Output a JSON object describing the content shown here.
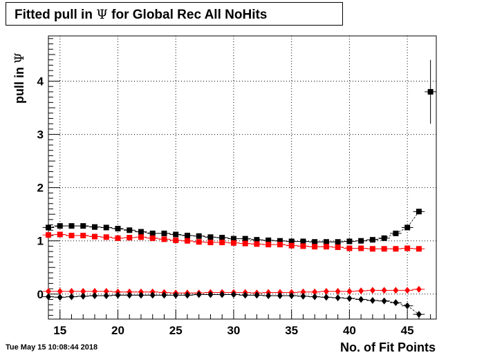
{
  "timestamp": "Tue May 15 10:08:44 2018",
  "colors": {
    "black_series": "#000000",
    "red_series": "#ff0000",
    "grid": "#000000"
  },
  "chart_data": {
    "type": "scatter",
    "title_prefix": "Fitted pull in ",
    "title_symbol": "Ψ",
    "title_suffix": " for Global Rec All NoHits",
    "xlabel": "No. of Fit Points",
    "ylabel_prefix": "pull in ",
    "ylabel_symbol": "Ψ",
    "xlim": [
      14,
      47.5
    ],
    "ylim": [
      -0.47,
      4.85
    ],
    "xticks": [
      15,
      20,
      25,
      30,
      35,
      40,
      45
    ],
    "yticks": [
      0,
      1,
      2,
      3,
      4
    ],
    "grid": true,
    "x": [
      14,
      15,
      16,
      17,
      18,
      19,
      20,
      21,
      22,
      23,
      24,
      25,
      26,
      27,
      28,
      29,
      30,
      31,
      32,
      33,
      34,
      35,
      36,
      37,
      38,
      39,
      40,
      41,
      42,
      43,
      44,
      45,
      46
    ],
    "series": [
      {
        "color": "#000000",
        "marker": "square",
        "values": [
          1.25,
          1.28,
          1.28,
          1.28,
          1.26,
          1.25,
          1.23,
          1.2,
          1.17,
          1.14,
          1.14,
          1.12,
          1.1,
          1.09,
          1.07,
          1.06,
          1.04,
          1.04,
          1.02,
          1.01,
          1.0,
          0.99,
          0.99,
          0.98,
          0.98,
          0.98,
          0.99,
          1.0,
          1.02,
          1.05,
          1.14,
          1.25,
          1.55
        ]
      },
      {
        "color": "#ff0000",
        "marker": "square",
        "values": [
          1.11,
          1.12,
          1.1,
          1.1,
          1.08,
          1.07,
          1.05,
          1.06,
          1.07,
          1.05,
          1.03,
          1.01,
          1.0,
          0.98,
          0.97,
          0.97,
          0.96,
          0.95,
          0.94,
          0.93,
          0.93,
          0.91,
          0.9,
          0.89,
          0.89,
          0.88,
          0.86,
          0.86,
          0.85,
          0.85,
          0.85,
          0.86,
          0.85
        ]
      },
      {
        "color": "#ff0000",
        "marker": "diamond",
        "values": [
          0.05,
          0.05,
          0.05,
          0.05,
          0.05,
          0.05,
          0.04,
          0.04,
          0.04,
          0.04,
          0.03,
          0.02,
          0.02,
          0.02,
          0.03,
          0.03,
          0.03,
          0.03,
          0.02,
          0.03,
          0.03,
          0.03,
          0.04,
          0.04,
          0.05,
          0.05,
          0.05,
          0.06,
          0.07,
          0.07,
          0.07,
          0.07,
          0.09
        ]
      },
      {
        "color": "#000000",
        "marker": "diamond",
        "values": [
          -0.05,
          -0.06,
          -0.05,
          -0.04,
          -0.03,
          -0.03,
          -0.02,
          -0.02,
          -0.02,
          -0.02,
          -0.02,
          -0.02,
          -0.02,
          -0.01,
          -0.01,
          -0.01,
          -0.01,
          -0.02,
          -0.02,
          -0.03,
          -0.03,
          -0.03,
          -0.04,
          -0.05,
          -0.06,
          -0.07,
          -0.08,
          -0.1,
          -0.12,
          -0.13,
          -0.16,
          -0.22,
          -0.38
        ]
      },
      {
        "color": "#000000",
        "marker": "square",
        "x": [
          47
        ],
        "values": [
          3.8
        ],
        "error": [
          0.6
        ]
      }
    ]
  }
}
